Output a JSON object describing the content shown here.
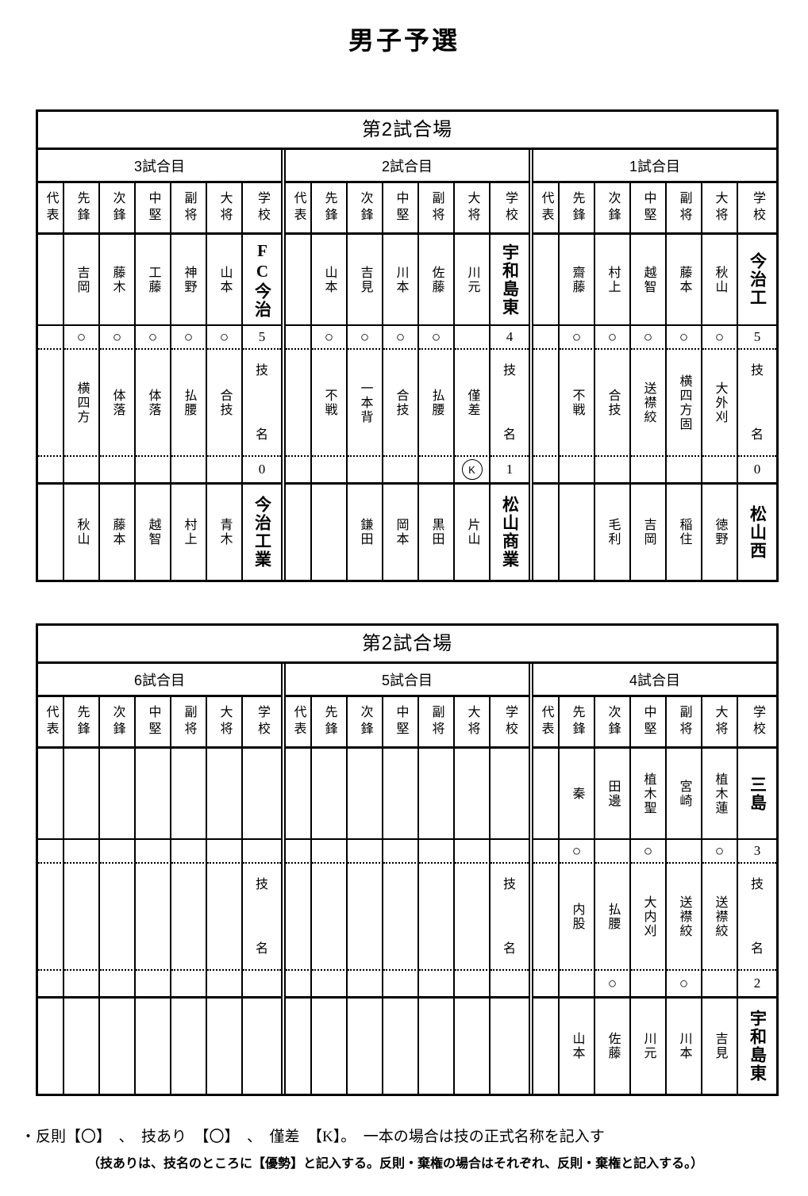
{
  "page_title": "男子予選",
  "column_headers": [
    "代表",
    "先鋒",
    "次鋒",
    "中堅",
    "副将",
    "大将",
    "学校"
  ],
  "tech_label": {
    "top": "技",
    "bottom": "名"
  },
  "legend": {
    "line1": "・反則【〇】　、　技あり　【〇】　、　僅差　【K】。　一本の場合は技の正式名称を記入す",
    "line2": "（技ありは、技名のところに【優勢】と記入する。反則・棄権の場合はそれぞれ、反則・棄権と記入する。）"
  },
  "tables": [
    {
      "title": "第2試合場",
      "matches": [
        {
          "name": "3試合目",
          "top": {
            "players": [
              "吉岡",
              "藤木",
              "工藤",
              "神野",
              "山本"
            ],
            "school": "FC今治"
          },
          "marks1": {
            "cells": [
              "○",
              "○",
              "○",
              "○",
              "○"
            ],
            "score": "5"
          },
          "techniques": [
            "横四方",
            "体落",
            "体落",
            "払腰",
            "合技"
          ],
          "marks2": {
            "cells": [
              "",
              "",
              "",
              "",
              ""
            ],
            "score": "0"
          },
          "bottom": {
            "players": [
              "秋山",
              "藤本",
              "越智",
              "村上",
              "青木"
            ],
            "school": "今治工業"
          }
        },
        {
          "name": "2試合目",
          "top": {
            "players": [
              "山本",
              "吉見",
              "川本",
              "佐藤",
              "川元"
            ],
            "school": "宇和島東"
          },
          "marks1": {
            "cells": [
              "○",
              "○",
              "○",
              "○",
              ""
            ],
            "score": "4"
          },
          "techniques": [
            "不戦",
            "一本背",
            "合技",
            "払腰",
            "僅差"
          ],
          "marks2": {
            "cells": [
              "",
              "",
              "",
              "",
              "K"
            ],
            "score": "1"
          },
          "bottom": {
            "players": [
              "",
              "鎌田",
              "岡本",
              "黒田",
              "片山"
            ],
            "school": "松山商業"
          }
        },
        {
          "name": "1試合目",
          "top": {
            "players": [
              "齋藤",
              "村上",
              "越智",
              "藤本",
              "秋山"
            ],
            "school": "今治工"
          },
          "marks1": {
            "cells": [
              "○",
              "○",
              "○",
              "○",
              "○"
            ],
            "score": "5"
          },
          "techniques": [
            "不戦",
            "合技",
            "送襟絞",
            "横四方固",
            "大外刈"
          ],
          "marks2": {
            "cells": [
              "",
              "",
              "",
              "",
              ""
            ],
            "score": "0"
          },
          "bottom": {
            "players": [
              "",
              "毛利",
              "吉岡",
              "稲住",
              "徳野"
            ],
            "school": "松山西"
          }
        }
      ]
    },
    {
      "title": "第2試合場",
      "matches": [
        {
          "name": "6試合目",
          "top": {
            "players": [
              "",
              "",
              "",
              "",
              ""
            ],
            "school": ""
          },
          "marks1": {
            "cells": [
              "",
              "",
              "",
              "",
              ""
            ],
            "score": ""
          },
          "techniques": [
            "",
            "",
            "",
            "",
            ""
          ],
          "marks2": {
            "cells": [
              "",
              "",
              "",
              "",
              ""
            ],
            "score": ""
          },
          "bottom": {
            "players": [
              "",
              "",
              "",
              "",
              ""
            ],
            "school": ""
          }
        },
        {
          "name": "5試合目",
          "top": {
            "players": [
              "",
              "",
              "",
              "",
              ""
            ],
            "school": ""
          },
          "marks1": {
            "cells": [
              "",
              "",
              "",
              "",
              ""
            ],
            "score": ""
          },
          "techniques": [
            "",
            "",
            "",
            "",
            ""
          ],
          "marks2": {
            "cells": [
              "",
              "",
              "",
              "",
              ""
            ],
            "score": ""
          },
          "bottom": {
            "players": [
              "",
              "",
              "",
              "",
              ""
            ],
            "school": ""
          }
        },
        {
          "name": "4試合目",
          "top": {
            "players": [
              "秦",
              "田邊",
              "植木聖",
              "宮崎",
              "植木蓮"
            ],
            "school": "三島"
          },
          "marks1": {
            "cells": [
              "○",
              "",
              "○",
              "",
              "○"
            ],
            "score": "3"
          },
          "techniques": [
            "内股",
            "払腰",
            "大内刈",
            "送襟絞",
            "送襟絞"
          ],
          "marks2": {
            "cells": [
              "",
              "○",
              "",
              "○",
              ""
            ],
            "score": "2"
          },
          "bottom": {
            "players": [
              "山本",
              "佐藤",
              "川元",
              "川本",
              "吉見"
            ],
            "school": "宇和島東"
          }
        }
      ]
    }
  ]
}
